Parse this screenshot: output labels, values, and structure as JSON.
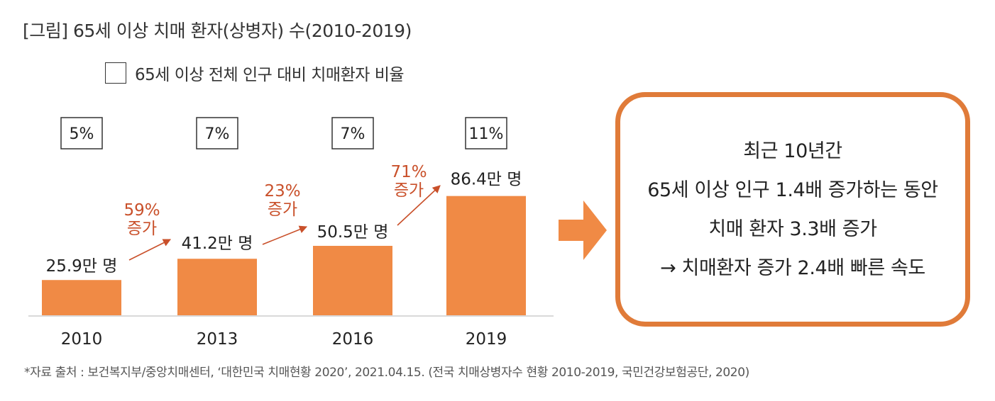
{
  "title": "[그림] 65세 이상 치매 환자(상병자) 수(2010-2019)",
  "legend": {
    "label": "65세 이상 전체 인구 대비 치매환자 비율"
  },
  "chart_data": {
    "type": "bar",
    "categories": [
      "2010",
      "2013",
      "2016",
      "2019"
    ],
    "values": [
      25.9,
      41.2,
      50.5,
      86.4
    ],
    "value_labels": [
      "25.9만 명",
      "41.2만 명",
      "50.5만 명",
      "86.4만 명"
    ],
    "ratio_labels": [
      "5%",
      "7%",
      "7%",
      "11%"
    ],
    "growth": [
      {
        "pct": "59%",
        "word": "증가"
      },
      {
        "pct": "23%",
        "word": "증가"
      },
      {
        "pct": "71%",
        "word": "증가"
      }
    ],
    "unit": "만 명",
    "bar_color": "#f08a45",
    "growth_color": "#c9502a",
    "grid": false
  },
  "arrow_color": "#f08a45",
  "callout": {
    "border_color": "#e07b39",
    "lines": [
      "최근 10년간",
      "65세 이상 인구 1.4배 증가하는 동안",
      "치매 환자 3.3배 증가",
      "→ 치매환자 증가 2.4배 빠른 속도"
    ]
  },
  "source": "*자료 출처 : 보건복지부/중앙치매센터, ‘대한민국 치매현황 2020’, 2021.04.15. (전국 치매상병자수 현황 2010-2019, 국민건강보험공단, 2020)"
}
